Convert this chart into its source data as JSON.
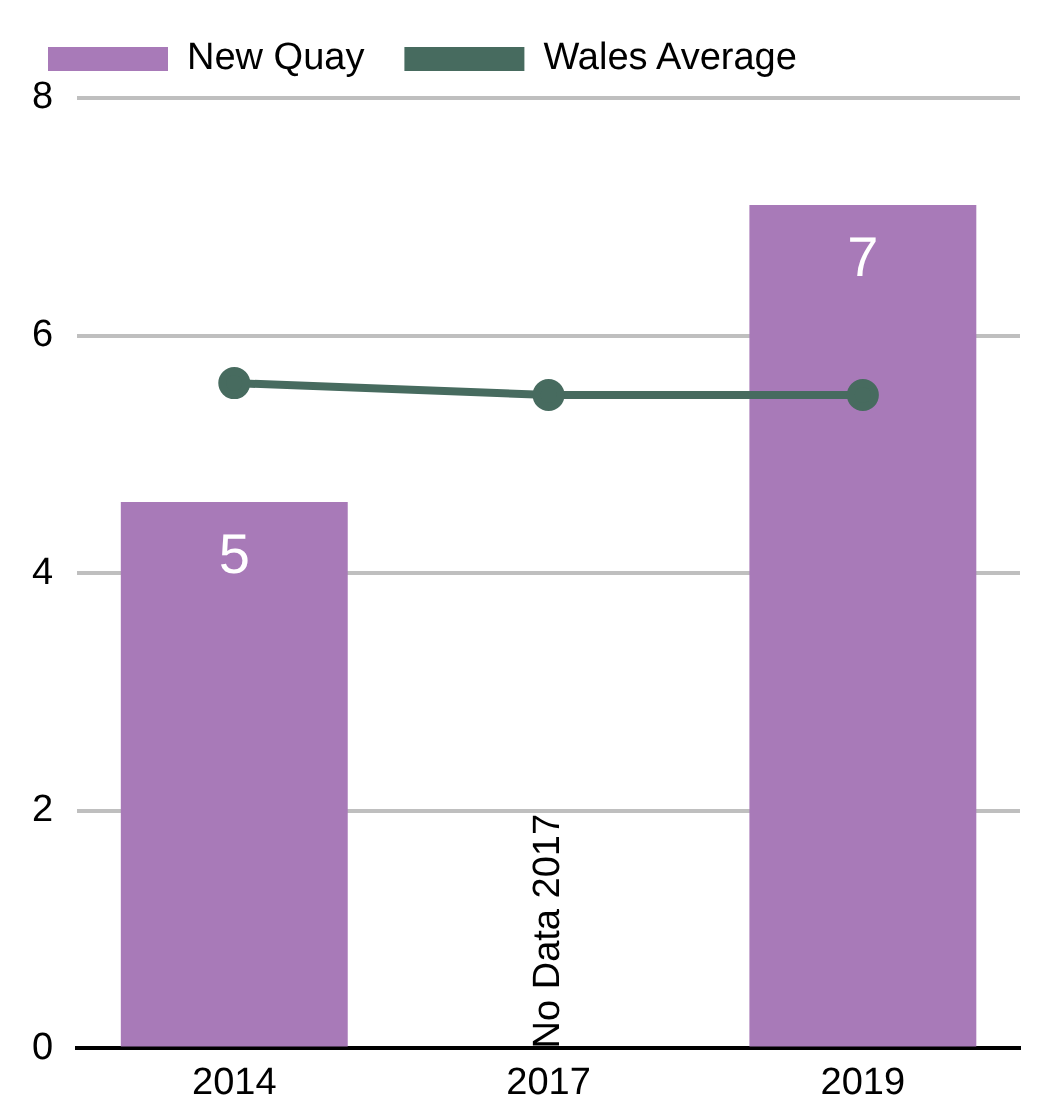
{
  "chart_data": {
    "type": "bar",
    "categories": [
      "2014",
      "2017",
      "2019"
    ],
    "series": [
      {
        "name": "New Quay",
        "color": "#a87ab8",
        "values": [
          4.6,
          null,
          7.1
        ],
        "value_labels": [
          "5",
          null,
          "7"
        ]
      },
      {
        "name": "Wales Average",
        "type": "line",
        "color": "#476b5f",
        "values": [
          5.6,
          5.5,
          5.5
        ]
      }
    ],
    "ylim": [
      0,
      8
    ],
    "yticks": [
      0,
      2,
      4,
      6,
      8
    ],
    "grid": "y",
    "legend": "top left",
    "marker": "circle",
    "annotations": [
      "No Data 2017"
    ]
  }
}
